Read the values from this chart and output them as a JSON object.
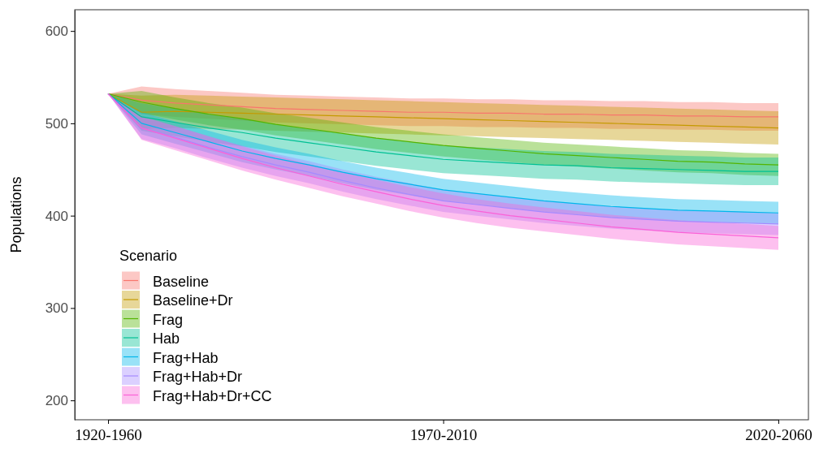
{
  "chart_data": {
    "type": "line",
    "ylabel": "Populations",
    "legend_title": "Scenario",
    "legend": "bottom left",
    "grid": false,
    "categories": [
      "1920-1960",
      null,
      null,
      null,
      null,
      null,
      null,
      null,
      null,
      null,
      "1970-2010",
      null,
      null,
      null,
      null,
      null,
      null,
      null,
      null,
      null,
      "2020-2060"
    ],
    "ylim": [
      179,
      623
    ],
    "yticks": [
      200,
      300,
      400,
      500,
      600
    ],
    "series": [
      {
        "name": "Baseline",
        "color": "#f8766d",
        "values": [
          532,
          525,
          522,
          520,
          518,
          516,
          515,
          514,
          513,
          512,
          512,
          511,
          511,
          510,
          510,
          509,
          509,
          508,
          508,
          507,
          507
        ],
        "lower": [
          532,
          510,
          507,
          505,
          503,
          501,
          500,
          499,
          498,
          497,
          497,
          496,
          496,
          495,
          495,
          494,
          494,
          493,
          493,
          492,
          492
        ],
        "upper": [
          532,
          540,
          537,
          535,
          533,
          531,
          530,
          529,
          528,
          527,
          527,
          526,
          526,
          525,
          525,
          524,
          524,
          523,
          523,
          522,
          522
        ]
      },
      {
        "name": "Baseline+Dr",
        "color": "#c49a00",
        "values": [
          532,
          512,
          513,
          512,
          511,
          510,
          509,
          508,
          507,
          506,
          505,
          504,
          503,
          502,
          501,
          500,
          499,
          498,
          497,
          496,
          495
        ],
        "lower": [
          532,
          494,
          495,
          494,
          493,
          492,
          491,
          490,
          489,
          488,
          487,
          486,
          485,
          484,
          483,
          482,
          481,
          480,
          479,
          478,
          477
        ],
        "upper": [
          532,
          530,
          531,
          530,
          529,
          528,
          527,
          526,
          525,
          524,
          523,
          522,
          521,
          520,
          519,
          518,
          517,
          516,
          515,
          514,
          513
        ]
      },
      {
        "name": "Frag",
        "color": "#53b400",
        "values": [
          532,
          523,
          516,
          510,
          505,
          499,
          494,
          489,
          484,
          480,
          476,
          473,
          470,
          467,
          465,
          463,
          461,
          459,
          458,
          456,
          455
        ],
        "lower": [
          532,
          511,
          504,
          498,
          493,
          487,
          482,
          477,
          472,
          468,
          464,
          461,
          458,
          455,
          453,
          451,
          449,
          447,
          446,
          444,
          443
        ],
        "upper": [
          532,
          535,
          528,
          522,
          517,
          511,
          506,
          501,
          496,
          492,
          488,
          485,
          482,
          479,
          477,
          475,
          473,
          471,
          470,
          468,
          467
        ]
      },
      {
        "name": "Hab",
        "color": "#00c094",
        "values": [
          532,
          507,
          501,
          495,
          490,
          484,
          479,
          474,
          469,
          465,
          461,
          459,
          457,
          455,
          454,
          452,
          451,
          450,
          449,
          448,
          448
        ],
        "lower": [
          532,
          492,
          486,
          480,
          475,
          469,
          464,
          459,
          454,
          450,
          446,
          444,
          442,
          440,
          439,
          437,
          436,
          435,
          434,
          433,
          433
        ],
        "upper": [
          532,
          522,
          516,
          510,
          505,
          499,
          494,
          489,
          484,
          480,
          476,
          474,
          472,
          470,
          469,
          467,
          466,
          465,
          464,
          463,
          463
        ]
      },
      {
        "name": "Frag+Hab",
        "color": "#00b6eb",
        "values": [
          532,
          500,
          490,
          480,
          470,
          462,
          455,
          447,
          440,
          434,
          428,
          424,
          420,
          416,
          413,
          410,
          408,
          406,
          405,
          404,
          403
        ],
        "lower": [
          532,
          488,
          478,
          468,
          458,
          450,
          443,
          435,
          428,
          422,
          416,
          412,
          408,
          404,
          401,
          398,
          396,
          394,
          393,
          392,
          391
        ],
        "upper": [
          532,
          512,
          502,
          492,
          482,
          474,
          467,
          459,
          452,
          446,
          440,
          436,
          432,
          428,
          425,
          422,
          420,
          418,
          417,
          416,
          415
        ]
      },
      {
        "name": "Frag+Hab+Dr",
        "color": "#a58aff",
        "values": [
          532,
          495,
          485,
          474,
          464,
          455,
          447,
          438,
          430,
          423,
          416,
          412,
          408,
          404,
          401,
          398,
          396,
          394,
          393,
          392,
          391
        ],
        "lower": [
          532,
          483,
          473,
          462,
          452,
          443,
          435,
          426,
          418,
          411,
          404,
          400,
          396,
          392,
          389,
          386,
          384,
          382,
          381,
          380,
          379
        ],
        "upper": [
          532,
          507,
          497,
          486,
          476,
          467,
          459,
          450,
          442,
          435,
          428,
          424,
          420,
          416,
          413,
          410,
          408,
          406,
          405,
          404,
          403
        ]
      },
      {
        "name": "Frag+Hab+Dr+CC",
        "color": "#fb61d7",
        "values": [
          532,
          495,
          484,
          473,
          462,
          452,
          443,
          434,
          426,
          418,
          411,
          405,
          400,
          396,
          392,
          388,
          385,
          382,
          380,
          378,
          376
        ],
        "lower": [
          532,
          482,
          471,
          460,
          449,
          439,
          430,
          421,
          413,
          405,
          398,
          392,
          387,
          383,
          379,
          375,
          372,
          369,
          367,
          365,
          363
        ],
        "upper": [
          532,
          508,
          497,
          486,
          475,
          465,
          456,
          447,
          439,
          431,
          424,
          418,
          413,
          409,
          405,
          401,
          398,
          395,
          393,
          391,
          389
        ]
      }
    ]
  }
}
